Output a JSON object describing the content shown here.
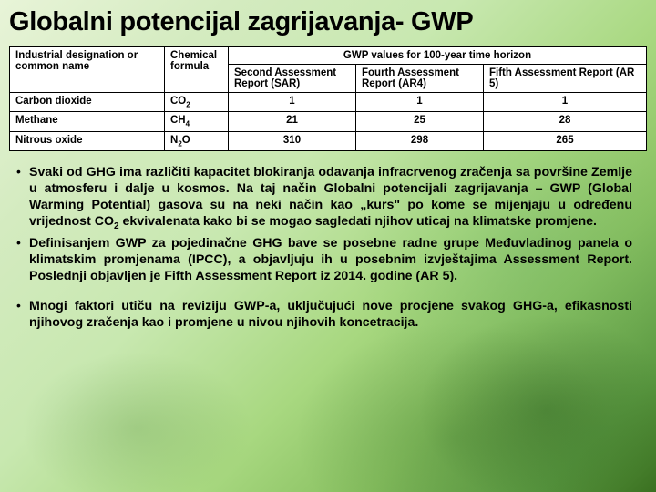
{
  "title": "Globalni potencijal zagrijavanja- GWP",
  "table": {
    "groupHeader": "GWP values for 100-year time horizon",
    "columns": {
      "c0": "Industrial designation or common name",
      "c1": "Chemical formula",
      "c2": "Second Assessment Report (SAR)",
      "c3": "Fourth Assessment Report (AR4)",
      "c4": "Fifth Assessment Report (AR 5)"
    },
    "rows": [
      {
        "name": "Carbon dioxide",
        "formula": "CO",
        "formulaSub": "2",
        "sar": "1",
        "ar4": "1",
        "ar5": "1"
      },
      {
        "name": "Methane",
        "formula": "CH",
        "formulaSub": "4",
        "sar": "21",
        "ar4": "25",
        "ar5": "28"
      },
      {
        "name": "Nitrous oxide",
        "formula": "N",
        "formulaSub": "2",
        "formulaTail": "O",
        "sar": "310",
        "ar4": "298",
        "ar5": "265"
      }
    ]
  },
  "bullets": {
    "b1a": "Svaki od GHG ima različiti kapacitet blokiranja odavanja infracrvenog zračenja sa površine Zemlje u atmosferu i dalje u kosmos. Na taj način Globalni potencijali zagrijavanja – GWP (Global Warming Potential) gasova su na neki način kao „kurs\" po kome se mijenjaju u određenu vrijednost CO",
    "b1sub": "2",
    "b1b": " ekvivalenata kako bi se mogao sagledati njihov uticaj na klimatske promjene.",
    "b2": "Definisanjem GWP za pojedinačne GHG bave se posebne radne grupe Međuvladinog panela o klimatskim promjenama (IPCC), a objavljuju ih u posebnim izvještajima Assessment Report. Poslednji objavljen je  Fifth Assessment Report iz 2014. godine (AR 5).",
    "b3": "Mnogi faktori utiču na reviziju GWP-a, uključujući nove procjene svakog GHG-a, efikasnosti njihovog zračenja kao i promjene u nivou njihovih koncetracija."
  }
}
